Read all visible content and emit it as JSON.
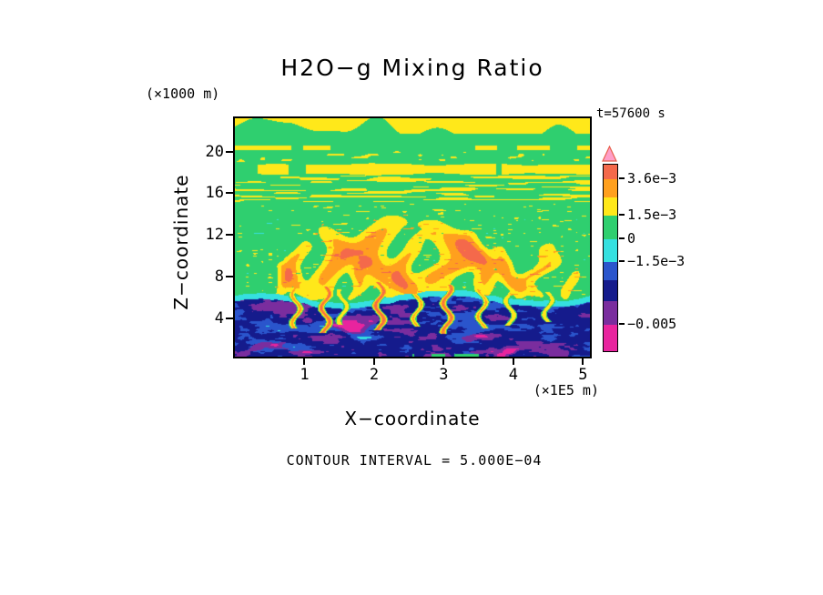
{
  "title": "H2O−g Mixing Ratio",
  "timestamp": "t=57600 s",
  "contour_note": "CONTOUR INTERVAL = 5.000E−04",
  "axes": {
    "x": {
      "label": "X−coordinate",
      "unit": "(×1E5 m)",
      "ticks": [
        1,
        2,
        3,
        4,
        5
      ]
    },
    "z": {
      "label": "Z−coordinate",
      "unit": "(×1000 m)",
      "ticks": [
        4,
        8,
        12,
        16,
        20
      ]
    }
  },
  "colorbar": {
    "segment_heights": [
      16,
      20,
      20,
      26,
      25,
      20,
      23,
      26,
      29
    ],
    "labels": [
      {
        "text": "3.6e−3",
        "after_segment": 1
      },
      {
        "text": "1.5e−3",
        "after_segment": 3
      },
      {
        "text": "0",
        "after_segment": 4
      },
      {
        "text": "−1.5e−3",
        "after_segment": 5
      },
      {
        "text": "−0.005",
        "after_segment": 8
      }
    ],
    "arrow": {
      "fill": "#FF9EC8",
      "stroke": "#E8604C"
    }
  },
  "chart_data": {
    "type": "heatmap",
    "title": "H2O−g Mixing Ratio",
    "xlabel": "X−coordinate (×1E5 m)",
    "ylabel": "Z−coordinate (×1000 m)",
    "x_range": [
      0,
      5.1
    ],
    "y_range": [
      0.3,
      23.2
    ],
    "x_ticks": [
      1,
      2,
      3,
      4,
      5
    ],
    "y_ticks": [
      4,
      8,
      12,
      16,
      20
    ],
    "time_label": "t=57600 s",
    "contour_interval": 0.0005,
    "value_bins": {
      "thresholds": [
        -0.005,
        -0.0035,
        -0.0025,
        -0.0015,
        0,
        0.0015,
        0.0025,
        0.0036,
        0.005
      ],
      "colors": [
        "#E8249E",
        "#7A2D9E",
        "#151B8C",
        "#2A55CC",
        "#35E0E0",
        "#2FCF6F",
        "#FFE81A",
        "#FFA01E",
        "#F4694B",
        "#FF9EC8"
      ]
    },
    "field_model": {
      "boundary_z": 6.0,
      "lower": {
        "base": -0.0028,
        "noise_amp": 0.002,
        "patch_value": -0.0046,
        "core_value": -0.0056,
        "fringe_value": -0.0007
      },
      "upper_base": 0.0006,
      "plumes": [
        {
          "x": 0.55,
          "w": 0.11,
          "a": 0.0016,
          "top": 9.5,
          "ph": 1
        },
        {
          "x": 0.92,
          "w": 0.15,
          "a": 0.0024,
          "top": 12.0,
          "ph": 2
        },
        {
          "x": 1.35,
          "w": 0.21,
          "a": 0.0026,
          "top": 13.5,
          "ph": 3
        },
        {
          "x": 1.75,
          "w": 0.11,
          "a": 0.0018,
          "top": 10.0,
          "ph": 4
        },
        {
          "x": 2.1,
          "w": 0.28,
          "a": 0.0028,
          "top": 14.6,
          "ph": 5
        },
        {
          "x": 2.55,
          "w": 0.15,
          "a": 0.0022,
          "top": 12.5,
          "ph": 6
        },
        {
          "x": 3.0,
          "w": 0.32,
          "a": 0.0026,
          "top": 14.2,
          "ph": 7
        },
        {
          "x": 3.55,
          "w": 0.17,
          "a": 0.0024,
          "top": 12.8,
          "ph": 8
        },
        {
          "x": 3.95,
          "w": 0.13,
          "a": 0.0022,
          "top": 11.5,
          "ph": 9
        },
        {
          "x": 4.45,
          "w": 0.19,
          "a": 0.002,
          "top": 12.0,
          "ph": 10
        },
        {
          "x": 4.85,
          "w": 0.11,
          "a": 0.0016,
          "top": 9.2,
          "ph": 11
        }
      ],
      "filaments": [
        {
          "x": 0.88,
          "a": 0.0028,
          "z0": 3.0,
          "z1": 7.5,
          "ph": 1
        },
        {
          "x": 1.3,
          "a": 0.0038,
          "z0": 2.6,
          "z1": 7.0,
          "ph": 2
        },
        {
          "x": 1.55,
          "a": 0.0024,
          "z0": 3.4,
          "z1": 6.8,
          "ph": 3
        },
        {
          "x": 2.08,
          "a": 0.004,
          "z0": 2.8,
          "z1": 7.5,
          "ph": 4
        },
        {
          "x": 2.62,
          "a": 0.0026,
          "z0": 3.2,
          "z1": 7.0,
          "ph": 5
        },
        {
          "x": 3.05,
          "a": 0.0038,
          "z0": 2.5,
          "z1": 7.2,
          "ph": 6
        },
        {
          "x": 3.55,
          "a": 0.0026,
          "z0": 3.0,
          "z1": 6.8,
          "ph": 7
        },
        {
          "x": 3.95,
          "a": 0.0024,
          "z0": 3.3,
          "z1": 6.6,
          "ph": 8
        },
        {
          "x": 4.5,
          "a": 0.0022,
          "z0": 3.6,
          "z1": 6.5,
          "ph": 9
        }
      ],
      "bands": {
        "streaks": {
          "z0": 15.2,
          "z1": 17.7,
          "value": 0.002
        },
        "cloud_band": {
          "zc": 18.3,
          "value": 0.002
        },
        "specks": {
          "z0": 19.0,
          "z1": 20.1,
          "value": 0.0019
        },
        "dashes": {
          "zc": 20.35,
          "value": 0.002
        },
        "top_blobs": {
          "z0": 21.7,
          "value": 0.002
        },
        "bottom_green": {
          "x0": 2.55,
          "x1": 3.65,
          "h": 0.6,
          "value": 0.0006
        }
      }
    }
  }
}
